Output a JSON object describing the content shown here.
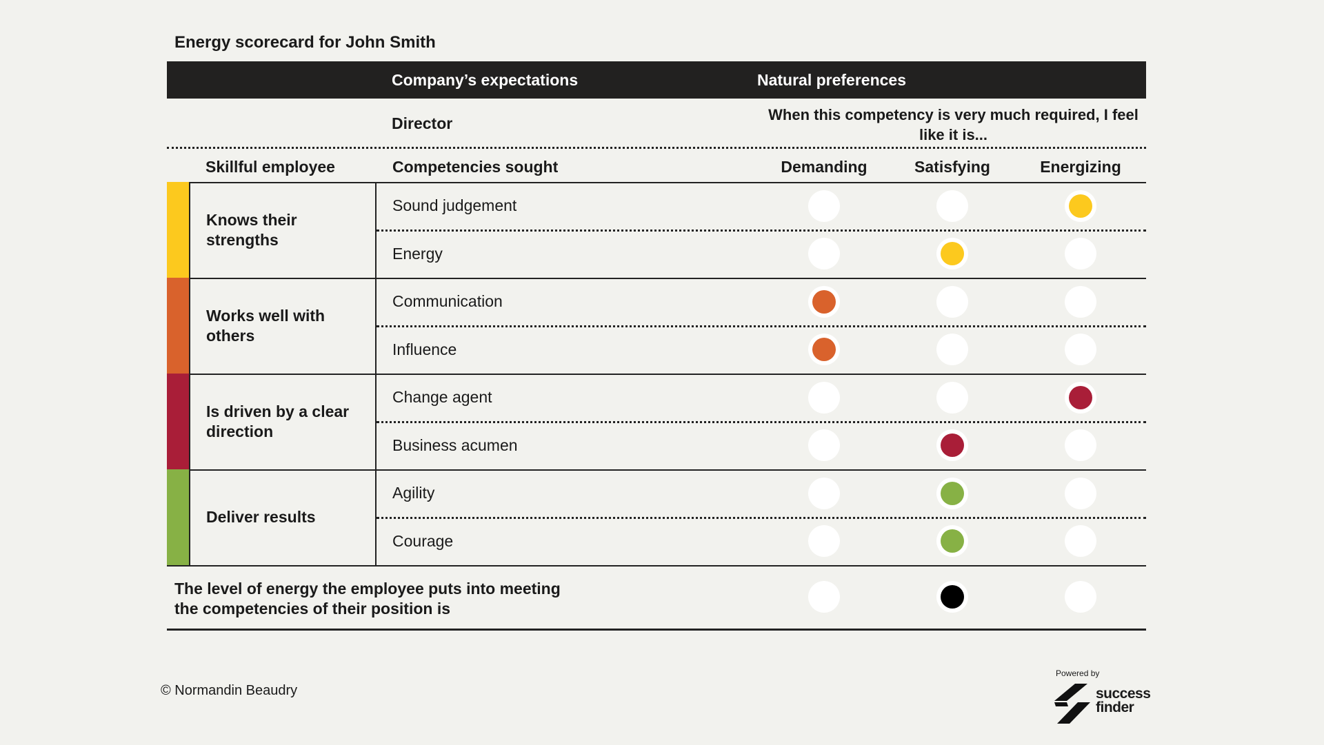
{
  "title": "Energy scorecard for John Smith",
  "header": {
    "expectations": "Company’s expectations",
    "preferences": "Natural preferences"
  },
  "position": "Director",
  "preferences_note": "When this competency is very much required, I feel like it is...",
  "columns": {
    "skill": "Skillful employee",
    "competencies": "Competencies sought",
    "demanding": "Demanding",
    "satisfying": "Satisfying",
    "energizing": "Energizing"
  },
  "groups": [
    {
      "label": "Knows their strengths",
      "color": "#fcc91e",
      "competencies": [
        {
          "name": "Sound judgement",
          "selected": "Energizing"
        },
        {
          "name": "Energy",
          "selected": "Satisfying"
        }
      ]
    },
    {
      "label": "Works well with others",
      "color": "#d9622c",
      "competencies": [
        {
          "name": "Communication",
          "selected": "Demanding"
        },
        {
          "name": "Influence",
          "selected": "Demanding"
        }
      ]
    },
    {
      "label": "Is driven by a clear direction",
      "color": "#a91e38",
      "competencies": [
        {
          "name": "Change agent",
          "selected": "Energizing"
        },
        {
          "name": "Business acumen",
          "selected": "Satisfying"
        }
      ]
    },
    {
      "label": "Deliver results",
      "color": "#87b145",
      "competencies": [
        {
          "name": "Agility",
          "selected": "Satisfying"
        },
        {
          "name": "Courage",
          "selected": "Satisfying"
        }
      ]
    }
  ],
  "summary": {
    "text": "The level of energy the employee puts into meeting the competencies of their position is",
    "selected": "Satisfying",
    "color": "#000000"
  },
  "footer": {
    "copyright": "© Normandin Beaudry",
    "powered_by": "Powered by",
    "brand": "success finder"
  }
}
